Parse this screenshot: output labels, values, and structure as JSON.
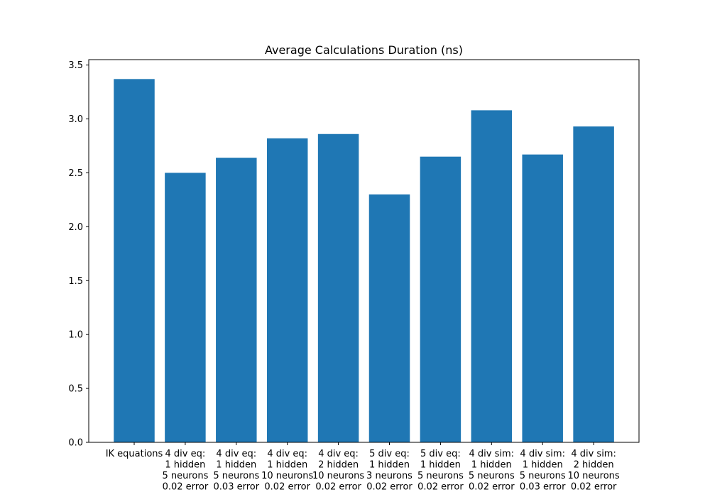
{
  "chart_data": {
    "type": "bar",
    "title": "Average Calculations Duration (ns)",
    "xlabel": "",
    "ylabel": "",
    "ylim": [
      0,
      3.55
    ],
    "yticks": [
      0.0,
      0.5,
      1.0,
      1.5,
      2.0,
      2.5,
      3.0,
      3.5
    ],
    "ytick_labels": [
      "0.0",
      "0.5",
      "1.0",
      "1.5",
      "2.0",
      "2.5",
      "3.0",
      "3.5"
    ],
    "grid": false,
    "bar_color": "#1f77b4",
    "categories": [
      [
        "IK equations"
      ],
      [
        "4 div eq:",
        "1 hidden",
        "5 neurons",
        "0.02 error"
      ],
      [
        "4 div eq:",
        "1 hidden",
        "5 neurons",
        "0.03 error"
      ],
      [
        "4 div eq:",
        "1 hidden",
        "10 neurons",
        "0.02 error"
      ],
      [
        "4 div eq:",
        "2 hidden",
        "10 neurons",
        "0.02 error"
      ],
      [
        "5 div eq:",
        "1 hidden",
        "3 neurons",
        "0.02 error"
      ],
      [
        "5 div eq:",
        "1 hidden",
        "5 neurons",
        "0.02 error"
      ],
      [
        "4 div sim:",
        "1 hidden",
        "5 neurons",
        "0.02 error"
      ],
      [
        "4 div sim:",
        "1 hidden",
        "5 neurons",
        "0.03 error"
      ],
      [
        "4 div sim:",
        "2 hidden",
        "10 neurons",
        "0.02 error"
      ]
    ],
    "values": [
      3.37,
      2.5,
      2.64,
      2.82,
      2.86,
      2.3,
      2.65,
      3.08,
      2.67,
      2.93
    ]
  }
}
